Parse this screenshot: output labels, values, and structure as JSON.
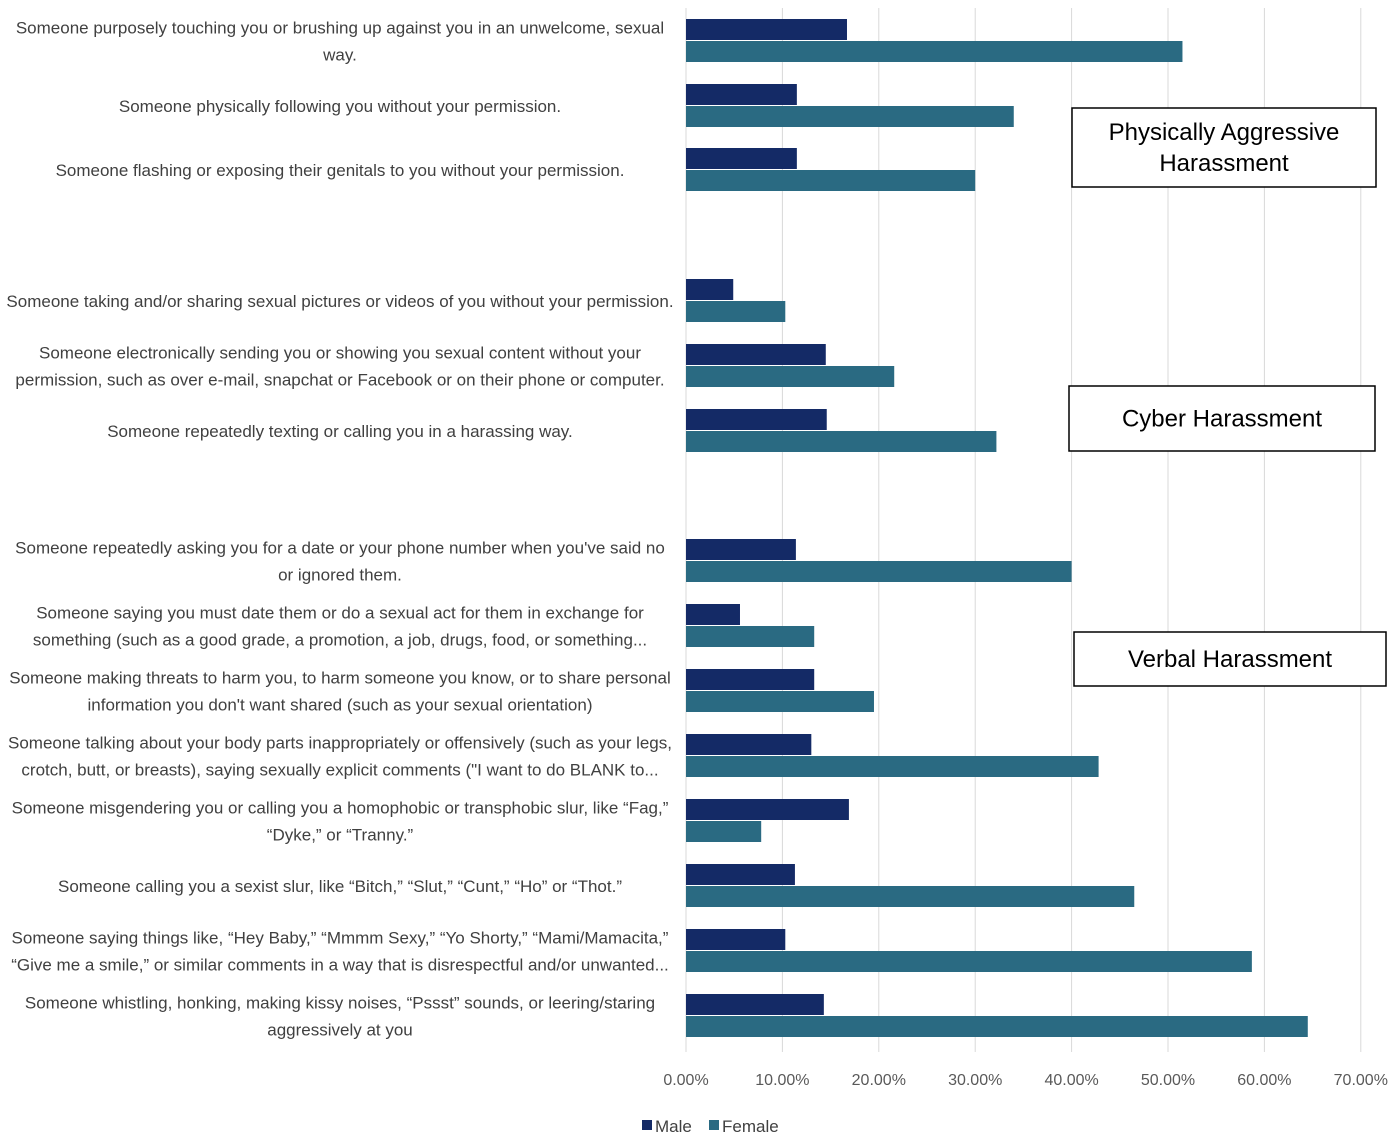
{
  "chart_data": {
    "type": "bar",
    "orientation": "horizontal",
    "x_ticks": [
      "0.00%",
      "10.00%",
      "20.00%",
      "30.00%",
      "40.00%",
      "50.00%",
      "60.00%",
      "70.00%"
    ],
    "xlim": [
      0,
      70
    ],
    "grid": true,
    "legend_position": "bottom",
    "colors": {
      "Male": "#142a66",
      "Female": "#2a6a82"
    },
    "series": [
      {
        "name": "Male",
        "color": "#142a66"
      },
      {
        "name": "Female",
        "color": "#2a6a82"
      }
    ],
    "categories": [
      {
        "label_lines": [
          "Someone purposely touching you or brushing up against you in an unwelcome, sexual",
          "way."
        ],
        "male": 16.7,
        "female": 51.5
      },
      {
        "label_lines": [
          "Someone physically following you without your permission."
        ],
        "male": 11.5,
        "female": 34.0
      },
      {
        "label_lines": [
          "Someone flashing or exposing their genitals to you without your permission."
        ],
        "male": 11.5,
        "female": 30.0
      },
      {
        "label_lines": [
          "Someone taking and/or sharing sexual pictures or videos of you without your permission."
        ],
        "male": 4.9,
        "female": 10.3
      },
      {
        "label_lines": [
          "Someone electronically sending you or showing you sexual content without your",
          "permission, such as over e-mail, snapchat or Facebook or on their phone or computer."
        ],
        "male": 14.5,
        "female": 21.6
      },
      {
        "label_lines": [
          "Someone repeatedly texting or calling you in a harassing way."
        ],
        "male": 14.6,
        "female": 32.2
      },
      {
        "label_lines": [
          "Someone repeatedly asking you for a date or your phone number when you've said no",
          "or ignored them."
        ],
        "male": 11.4,
        "female": 40.0
      },
      {
        "label_lines": [
          "Someone saying you must date them or do a sexual act for them in exchange for",
          "something (such as a good grade, a promotion, a job, drugs, food, or something..."
        ],
        "male": 5.6,
        "female": 13.3
      },
      {
        "label_lines": [
          "Someone making threats to harm you, to harm someone you know, or to share personal",
          "information you don't want shared (such as your sexual orientation)"
        ],
        "male": 13.3,
        "female": 19.5
      },
      {
        "label_lines": [
          "Someone talking about your body parts inappropriately or offensively (such as your legs,",
          "crotch, butt, or breasts), saying sexually explicit comments (\"I want to do BLANK to..."
        ],
        "male": 13.0,
        "female": 42.8
      },
      {
        "label_lines": [
          "Someone misgendering you or calling you a homophobic or transphobic slur, like “Fag,”",
          "“Dyke,” or “Tranny.”"
        ],
        "male": 16.9,
        "female": 7.8
      },
      {
        "label_lines": [
          "Someone calling you a sexist slur, like “Bitch,” “Slut,” “Cunt,” “Ho” or “Thot.”"
        ],
        "male": 11.3,
        "female": 46.5
      },
      {
        "label_lines": [
          "Someone saying things like, “Hey Baby,” “Mmmm Sexy,” “Yo Shorty,” “Mami/Mamacita,”",
          "“Give me a smile,” or similar comments in a way that is disrespectful and/or unwanted..."
        ],
        "male": 10.3,
        "female": 58.7
      },
      {
        "label_lines": [
          "Someone whistling, honking, making kissy noises, “Pssst” sounds, or leering/staring",
          "aggressively at you"
        ],
        "male": 14.3,
        "female": 64.5
      }
    ],
    "groups": [
      {
        "label_lines": [
          "Physically Aggressive",
          "Harassment"
        ]
      },
      {
        "label_lines": [
          "Cyber Harassment"
        ]
      },
      {
        "label_lines": [
          "Verbal Harassment"
        ]
      }
    ],
    "legend": [
      "Male",
      "Female"
    ]
  }
}
